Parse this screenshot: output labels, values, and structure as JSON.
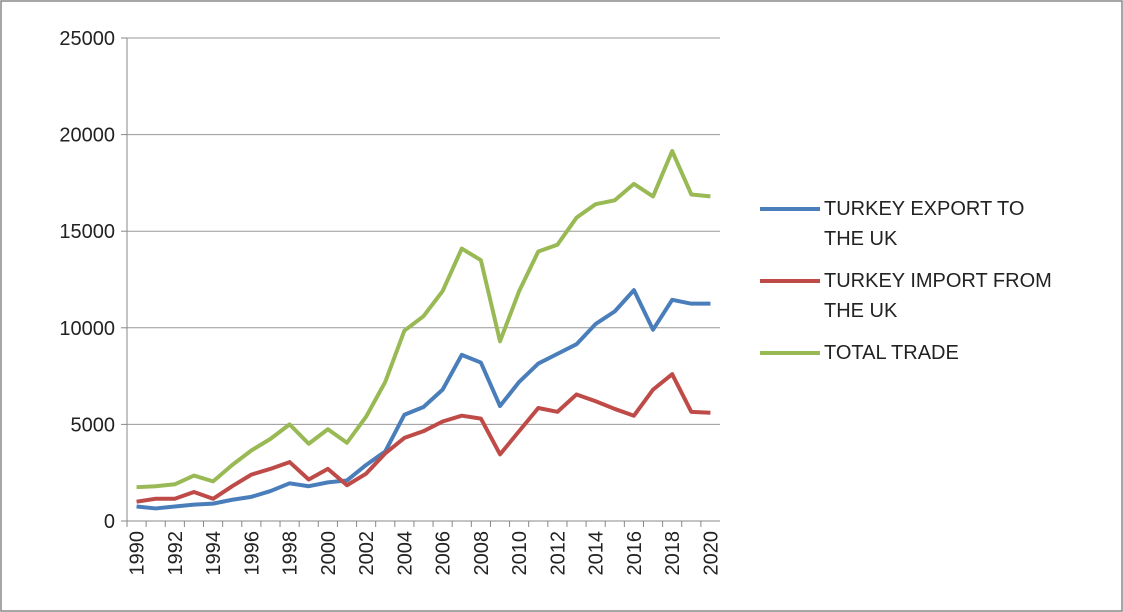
{
  "chart_data": {
    "type": "line",
    "categories": [
      "1990",
      null,
      "1992",
      null,
      "1994",
      null,
      "1996",
      null,
      "1998",
      null,
      "2000",
      null,
      "2002",
      null,
      "2004",
      null,
      "2006",
      null,
      "2008",
      null,
      "2010",
      null,
      "2012",
      null,
      "2014",
      null,
      "2016",
      null,
      "2018",
      null,
      "2020"
    ],
    "series": [
      {
        "name": "TURKEY EXPORT TO THE UK",
        "color": "#4a7ebb",
        "values": [
          750,
          650,
          750,
          850,
          900,
          1100,
          1250,
          1550,
          1950,
          1800,
          2000,
          2100,
          2900,
          3600,
          5500,
          5900,
          6800,
          8600,
          8200,
          5950,
          7200,
          8150,
          8650,
          9150,
          10200,
          10850,
          11950,
          9900,
          11450,
          11250,
          11250
        ]
      },
      {
        "name": "TURKEY IMPORT FROM THE UK",
        "color": "#be4b48",
        "values": [
          1000,
          1150,
          1150,
          1500,
          1150,
          1800,
          2400,
          2700,
          3050,
          2150,
          2700,
          1850,
          2450,
          3500,
          4300,
          4650,
          5150,
          5450,
          5300,
          3450,
          4650,
          5850,
          5650,
          6550,
          6200,
          5800,
          5450,
          6800,
          7600,
          5650,
          5600
        ]
      },
      {
        "name": "TOTAL TRADE",
        "color": "#98b954",
        "values": [
          1750,
          1800,
          1900,
          2350,
          2050,
          2900,
          3650,
          4250,
          5000,
          4000,
          4750,
          4050,
          5400,
          7200,
          9850,
          10600,
          11900,
          14100,
          13500,
          9300,
          11900,
          13950,
          14300,
          15700,
          16400,
          16600,
          17450,
          16800,
          19150,
          16900,
          16800
        ]
      }
    ],
    "ylim": [
      0,
      25000
    ],
    "yticks": [
      0,
      5000,
      10000,
      15000,
      20000,
      25000
    ],
    "grid": true
  }
}
